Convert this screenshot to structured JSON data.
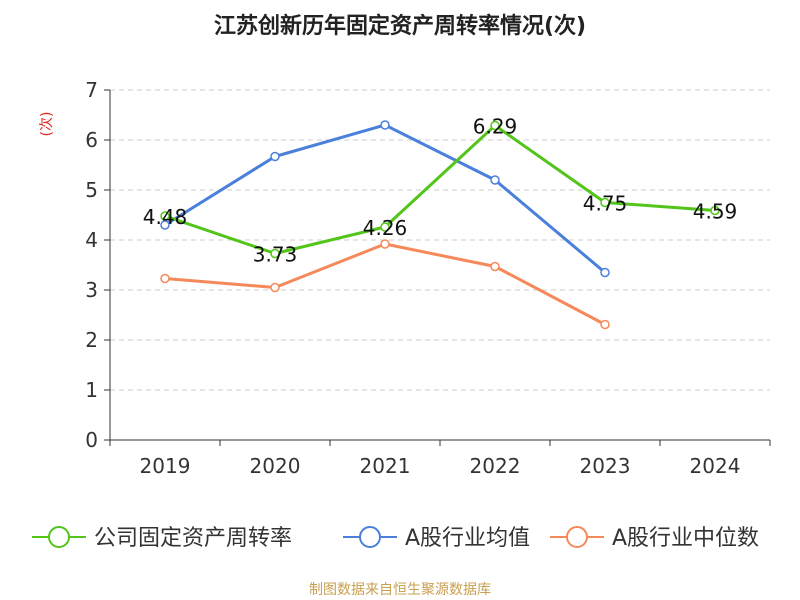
{
  "chart_data": {
    "type": "line",
    "title": "江苏创新历年固定资产周转率情况(次)",
    "ylabel": "(次)",
    "xlabel": "",
    "categories": [
      "2019",
      "2020",
      "2021",
      "2022",
      "2023",
      "2024"
    ],
    "ylim": [
      0,
      7
    ],
    "yticks": [
      "0",
      "1",
      "2",
      "3",
      "4",
      "5",
      "6",
      "7"
    ],
    "grid": true,
    "legend_position": "bottom",
    "series": [
      {
        "name": "公司固定资产周转率",
        "color": "#52c41a",
        "values": [
          4.48,
          3.73,
          4.26,
          6.29,
          4.75,
          4.59
        ],
        "labels": [
          "4.48",
          "3.73",
          "4.26",
          "6.29",
          "4.75",
          "4.59"
        ]
      },
      {
        "name": "A股行业均值",
        "color": "#4a7fdc",
        "values": [
          4.3,
          5.67,
          6.3,
          5.2,
          3.35,
          null
        ]
      },
      {
        "name": "A股行业中位数",
        "color": "#f5895a",
        "values": [
          3.23,
          3.05,
          3.92,
          3.47,
          2.31,
          null
        ]
      }
    ]
  },
  "source": "制图数据来自恒生聚源数据库",
  "colors": {
    "title": "#222222",
    "ylabel": "#e0261b",
    "axis": "#333333",
    "grid": "#cccccc",
    "source": "#c8a050"
  }
}
